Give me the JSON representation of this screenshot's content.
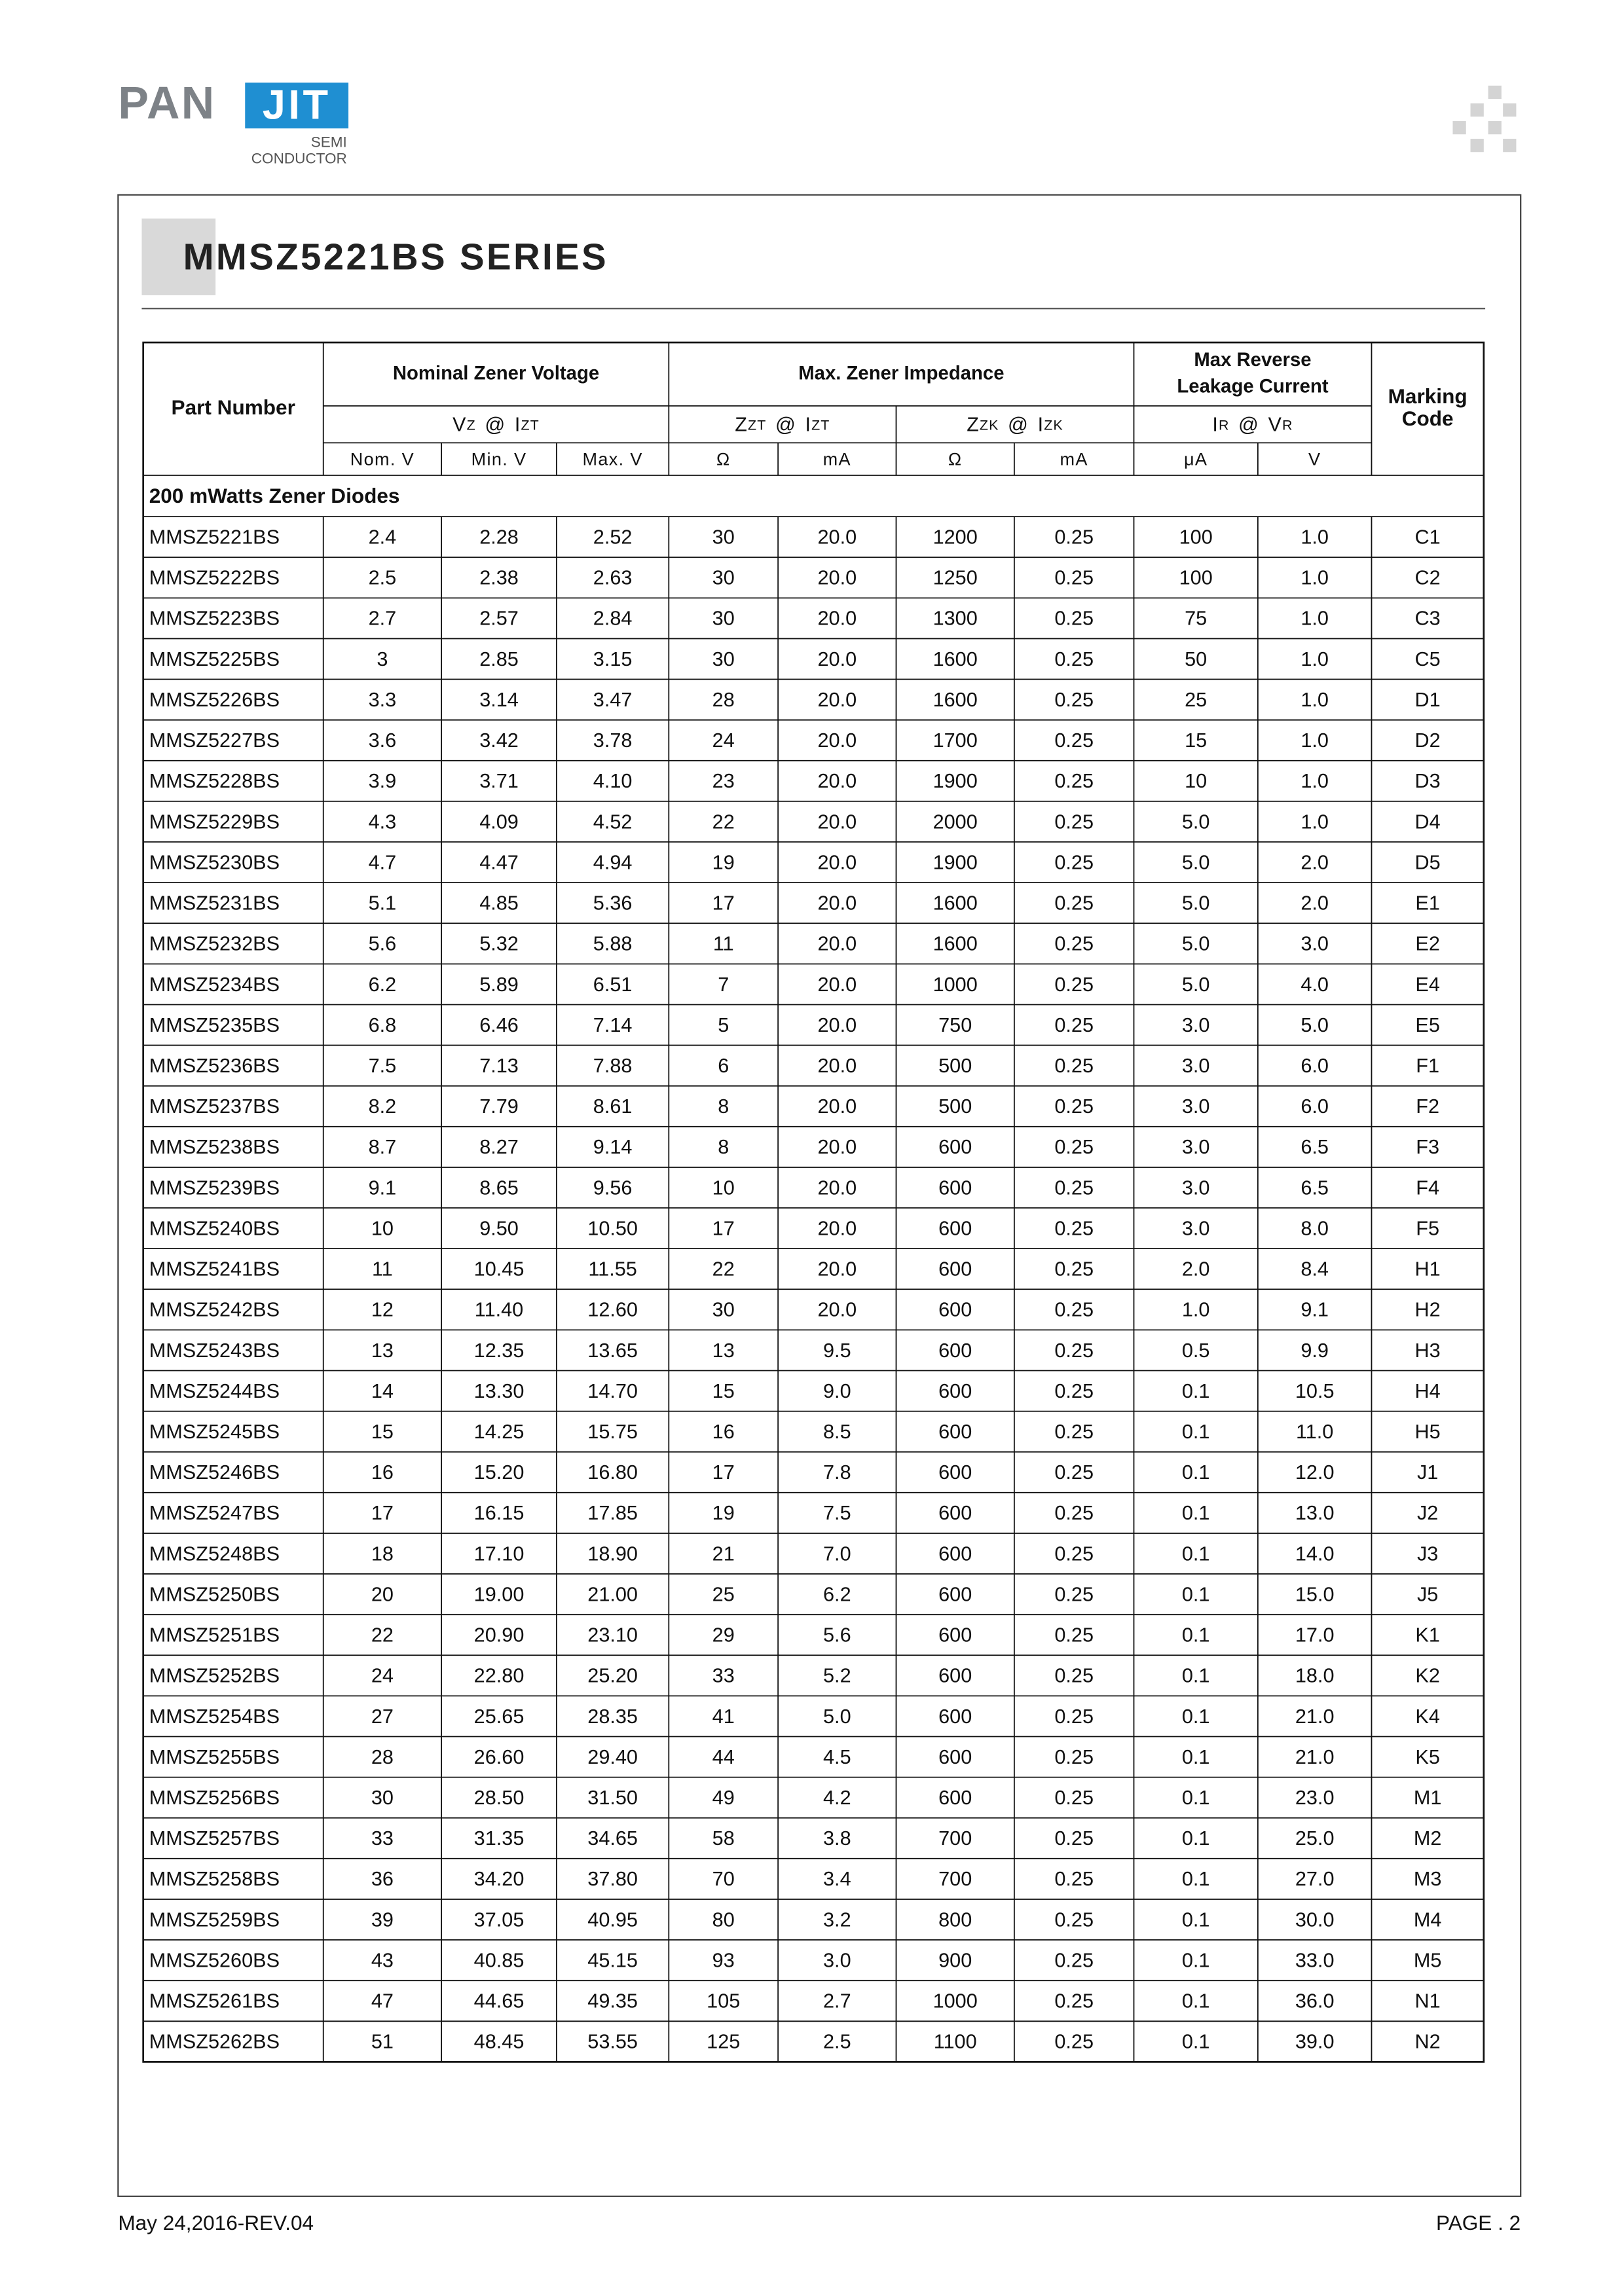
{
  "header": {
    "logo": {
      "left": "PAN",
      "right": "JIT",
      "line1": "SEMI",
      "line2": "CONDUCTOR"
    },
    "title": "MMSZ5221BS SERIES"
  },
  "table": {
    "head": {
      "part_number": "Part Number",
      "groups": [
        [
          "Nominal Zener Voltage"
        ],
        [
          "Max. Zener Impedance"
        ],
        [
          "Max Reverse",
          "Leakage Current"
        ]
      ],
      "marking": [
        "Marking",
        "Code"
      ],
      "params": [
        {
          "a": "V",
          "a_sub": "Z",
          "at": "@",
          "b": "I",
          "b_sub": "ZT"
        },
        {
          "a": "Z",
          "a_sub": "ZT",
          "at": "@",
          "b": "I",
          "b_sub": "ZT"
        },
        {
          "a": "Z",
          "a_sub": "ZK",
          "at": "@",
          "b": "I",
          "b_sub": "ZK"
        },
        {
          "a": "I",
          "a_sub": "R",
          "at": "@",
          "b": "V",
          "b_sub": "R"
        }
      ],
      "units": [
        "Nom. V",
        "Min. V",
        "Max. V",
        "Ω",
        "mA",
        "Ω",
        "mA",
        "μA",
        "V"
      ]
    },
    "section": "200 mWatts Zener Diodes",
    "rows": [
      [
        "MMSZ5221BS",
        "2.4",
        "2.28",
        "2.52",
        "30",
        "20.0",
        "1200",
        "0.25",
        "100",
        "1.0",
        "C1"
      ],
      [
        "MMSZ5222BS",
        "2.5",
        "2.38",
        "2.63",
        "30",
        "20.0",
        "1250",
        "0.25",
        "100",
        "1.0",
        "C2"
      ],
      [
        "MMSZ5223BS",
        "2.7",
        "2.57",
        "2.84",
        "30",
        "20.0",
        "1300",
        "0.25",
        "75",
        "1.0",
        "C3"
      ],
      [
        "MMSZ5225BS",
        "3",
        "2.85",
        "3.15",
        "30",
        "20.0",
        "1600",
        "0.25",
        "50",
        "1.0",
        "C5"
      ],
      [
        "MMSZ5226BS",
        "3.3",
        "3.14",
        "3.47",
        "28",
        "20.0",
        "1600",
        "0.25",
        "25",
        "1.0",
        "D1"
      ],
      [
        "MMSZ5227BS",
        "3.6",
        "3.42",
        "3.78",
        "24",
        "20.0",
        "1700",
        "0.25",
        "15",
        "1.0",
        "D2"
      ],
      [
        "MMSZ5228BS",
        "3.9",
        "3.71",
        "4.10",
        "23",
        "20.0",
        "1900",
        "0.25",
        "10",
        "1.0",
        "D3"
      ],
      [
        "MMSZ5229BS",
        "4.3",
        "4.09",
        "4.52",
        "22",
        "20.0",
        "2000",
        "0.25",
        "5.0",
        "1.0",
        "D4"
      ],
      [
        "MMSZ5230BS",
        "4.7",
        "4.47",
        "4.94",
        "19",
        "20.0",
        "1900",
        "0.25",
        "5.0",
        "2.0",
        "D5"
      ],
      [
        "MMSZ5231BS",
        "5.1",
        "4.85",
        "5.36",
        "17",
        "20.0",
        "1600",
        "0.25",
        "5.0",
        "2.0",
        "E1"
      ],
      [
        "MMSZ5232BS",
        "5.6",
        "5.32",
        "5.88",
        "11",
        "20.0",
        "1600",
        "0.25",
        "5.0",
        "3.0",
        "E2"
      ],
      [
        "MMSZ5234BS",
        "6.2",
        "5.89",
        "6.51",
        "7",
        "20.0",
        "1000",
        "0.25",
        "5.0",
        "4.0",
        "E4"
      ],
      [
        "MMSZ5235BS",
        "6.8",
        "6.46",
        "7.14",
        "5",
        "20.0",
        "750",
        "0.25",
        "3.0",
        "5.0",
        "E5"
      ],
      [
        "MMSZ5236BS",
        "7.5",
        "7.13",
        "7.88",
        "6",
        "20.0",
        "500",
        "0.25",
        "3.0",
        "6.0",
        "F1"
      ],
      [
        "MMSZ5237BS",
        "8.2",
        "7.79",
        "8.61",
        "8",
        "20.0",
        "500",
        "0.25",
        "3.0",
        "6.0",
        "F2"
      ],
      [
        "MMSZ5238BS",
        "8.7",
        "8.27",
        "9.14",
        "8",
        "20.0",
        "600",
        "0.25",
        "3.0",
        "6.5",
        "F3"
      ],
      [
        "MMSZ5239BS",
        "9.1",
        "8.65",
        "9.56",
        "10",
        "20.0",
        "600",
        "0.25",
        "3.0",
        "6.5",
        "F4"
      ],
      [
        "MMSZ5240BS",
        "10",
        "9.50",
        "10.50",
        "17",
        "20.0",
        "600",
        "0.25",
        "3.0",
        "8.0",
        "F5"
      ],
      [
        "MMSZ5241BS",
        "11",
        "10.45",
        "11.55",
        "22",
        "20.0",
        "600",
        "0.25",
        "2.0",
        "8.4",
        "H1"
      ],
      [
        "MMSZ5242BS",
        "12",
        "11.40",
        "12.60",
        "30",
        "20.0",
        "600",
        "0.25",
        "1.0",
        "9.1",
        "H2"
      ],
      [
        "MMSZ5243BS",
        "13",
        "12.35",
        "13.65",
        "13",
        "9.5",
        "600",
        "0.25",
        "0.5",
        "9.9",
        "H3"
      ],
      [
        "MMSZ5244BS",
        "14",
        "13.30",
        "14.70",
        "15",
        "9.0",
        "600",
        "0.25",
        "0.1",
        "10.5",
        "H4"
      ],
      [
        "MMSZ5245BS",
        "15",
        "14.25",
        "15.75",
        "16",
        "8.5",
        "600",
        "0.25",
        "0.1",
        "11.0",
        "H5"
      ],
      [
        "MMSZ5246BS",
        "16",
        "15.20",
        "16.80",
        "17",
        "7.8",
        "600",
        "0.25",
        "0.1",
        "12.0",
        "J1"
      ],
      [
        "MMSZ5247BS",
        "17",
        "16.15",
        "17.85",
        "19",
        "7.5",
        "600",
        "0.25",
        "0.1",
        "13.0",
        "J2"
      ],
      [
        "MMSZ5248BS",
        "18",
        "17.10",
        "18.90",
        "21",
        "7.0",
        "600",
        "0.25",
        "0.1",
        "14.0",
        "J3"
      ],
      [
        "MMSZ5250BS",
        "20",
        "19.00",
        "21.00",
        "25",
        "6.2",
        "600",
        "0.25",
        "0.1",
        "15.0",
        "J5"
      ],
      [
        "MMSZ5251BS",
        "22",
        "20.90",
        "23.10",
        "29",
        "5.6",
        "600",
        "0.25",
        "0.1",
        "17.0",
        "K1"
      ],
      [
        "MMSZ5252BS",
        "24",
        "22.80",
        "25.20",
        "33",
        "5.2",
        "600",
        "0.25",
        "0.1",
        "18.0",
        "K2"
      ],
      [
        "MMSZ5254BS",
        "27",
        "25.65",
        "28.35",
        "41",
        "5.0",
        "600",
        "0.25",
        "0.1",
        "21.0",
        "K4"
      ],
      [
        "MMSZ5255BS",
        "28",
        "26.60",
        "29.40",
        "44",
        "4.5",
        "600",
        "0.25",
        "0.1",
        "21.0",
        "K5"
      ],
      [
        "MMSZ5256BS",
        "30",
        "28.50",
        "31.50",
        "49",
        "4.2",
        "600",
        "0.25",
        "0.1",
        "23.0",
        "M1"
      ],
      [
        "MMSZ5257BS",
        "33",
        "31.35",
        "34.65",
        "58",
        "3.8",
        "700",
        "0.25",
        "0.1",
        "25.0",
        "M2"
      ],
      [
        "MMSZ5258BS",
        "36",
        "34.20",
        "37.80",
        "70",
        "3.4",
        "700",
        "0.25",
        "0.1",
        "27.0",
        "M3"
      ],
      [
        "MMSZ5259BS",
        "39",
        "37.05",
        "40.95",
        "80",
        "3.2",
        "800",
        "0.25",
        "0.1",
        "30.0",
        "M4"
      ],
      [
        "MMSZ5260BS",
        "43",
        "40.85",
        "45.15",
        "93",
        "3.0",
        "900",
        "0.25",
        "0.1",
        "33.0",
        "M5"
      ],
      [
        "MMSZ5261BS",
        "47",
        "44.65",
        "49.35",
        "105",
        "2.7",
        "1000",
        "0.25",
        "0.1",
        "36.0",
        "N1"
      ],
      [
        "MMSZ5262BS",
        "51",
        "48.45",
        "53.55",
        "125",
        "2.5",
        "1100",
        "0.25",
        "0.1",
        "39.0",
        "N2"
      ]
    ]
  },
  "footer": {
    "date": "May 24,2016-REV.04",
    "page": "PAGE . 2"
  }
}
